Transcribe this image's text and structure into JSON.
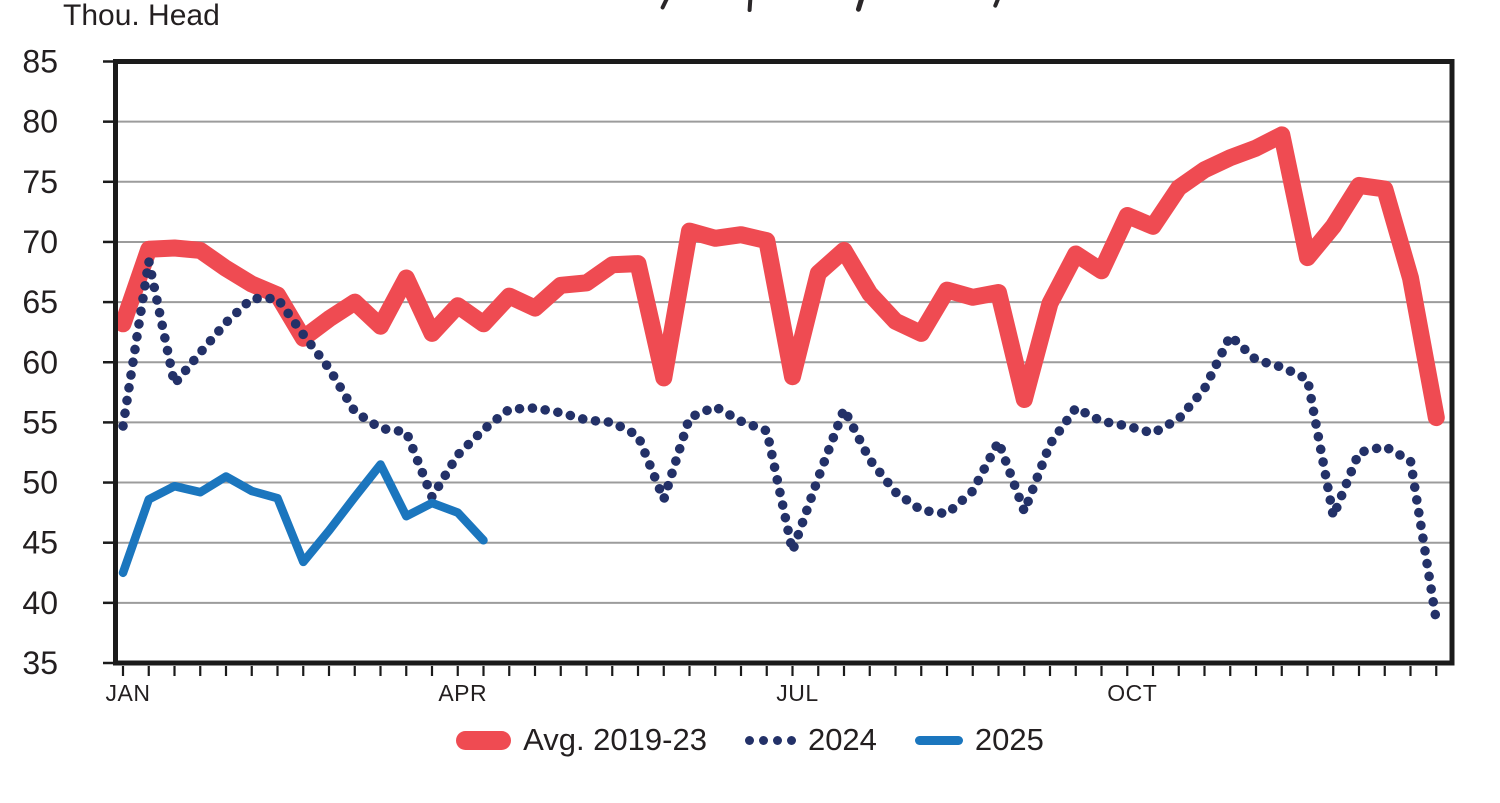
{
  "header": {
    "y_axis_units": "Thou. Head",
    "title_note": "title line cropped at top edge of screenshot"
  },
  "colors": {
    "avg_series": "#ef4b52",
    "series_2024": "#233168",
    "series_2025": "#1b76be",
    "gridline": "#9c9c9c",
    "axis_frame": "#1b1b1b",
    "text": "#231f20"
  },
  "legend": [
    {
      "label": "Avg. 2019-23",
      "style": "thick-line",
      "color": "#ef4b52"
    },
    {
      "label": "2024",
      "style": "dotted",
      "color": "#233168"
    },
    {
      "label": "2025",
      "style": "line",
      "color": "#1b76be"
    }
  ],
  "chart_data": {
    "type": "line",
    "title": "",
    "ylabel": "Thou. Head",
    "xlabel": "",
    "x_unit": "week of year (1-52)",
    "ylim": [
      35,
      85
    ],
    "y_ticks": [
      85,
      80,
      75,
      70,
      65,
      60,
      55,
      50,
      45,
      40,
      35
    ],
    "grid": "horizontal",
    "legend_position": "bottom",
    "x_month_ticks": [
      {
        "label": "JAN",
        "week": 1
      },
      {
        "label": "APR",
        "week": 14
      },
      {
        "label": "JUL",
        "week": 27
      },
      {
        "label": "OCT",
        "week": 40
      }
    ],
    "series": [
      {
        "name": "Avg. 2019-23",
        "style": "solid-thick",
        "color": "#ef4b52",
        "values": [
          63.2,
          69.4,
          69.5,
          69.3,
          67.8,
          66.5,
          65.6,
          62.0,
          63.6,
          65.0,
          63.0,
          67.0,
          62.4,
          64.7,
          63.2,
          65.5,
          64.5,
          66.4,
          66.6,
          68.1,
          68.2,
          58.7,
          70.9,
          70.3,
          70.6,
          70.1,
          58.8,
          67.4,
          69.3,
          65.7,
          63.4,
          62.4,
          66.0,
          65.4,
          65.8,
          56.9,
          64.9,
          69.0,
          67.6,
          72.2,
          71.3,
          74.5,
          76.0,
          77.0,
          77.8,
          78.9,
          68.7,
          71.3,
          74.7,
          74.4,
          67.0,
          55.4
        ]
      },
      {
        "name": "2024",
        "style": "dotted",
        "color": "#233168",
        "values": [
          54.7,
          68.4,
          58.2,
          60.8,
          63.3,
          65.3,
          65.3,
          62.3,
          59.5,
          55.9,
          54.5,
          54.2,
          48.8,
          52.3,
          54.4,
          56.1,
          56.2,
          55.8,
          55.2,
          55.0,
          53.9,
          48.6,
          55.4,
          56.3,
          55.1,
          54.3,
          44.3,
          50.4,
          56.1,
          51.9,
          49.2,
          47.7,
          47.4,
          49.3,
          53.4,
          47.6,
          53.2,
          56.2,
          55.1,
          54.7,
          54.1,
          55.3,
          57.8,
          62.2,
          60.2,
          59.6,
          58.6,
          47.2,
          52.5,
          53.0,
          51.8,
          38.5
        ]
      },
      {
        "name": "2025",
        "style": "solid",
        "color": "#1b76be",
        "values": [
          42.5,
          48.6,
          49.7,
          49.2,
          50.5,
          49.3,
          48.7,
          43.4,
          46.0,
          48.8,
          51.5,
          47.2,
          48.3,
          47.5,
          45.2
        ]
      }
    ]
  }
}
